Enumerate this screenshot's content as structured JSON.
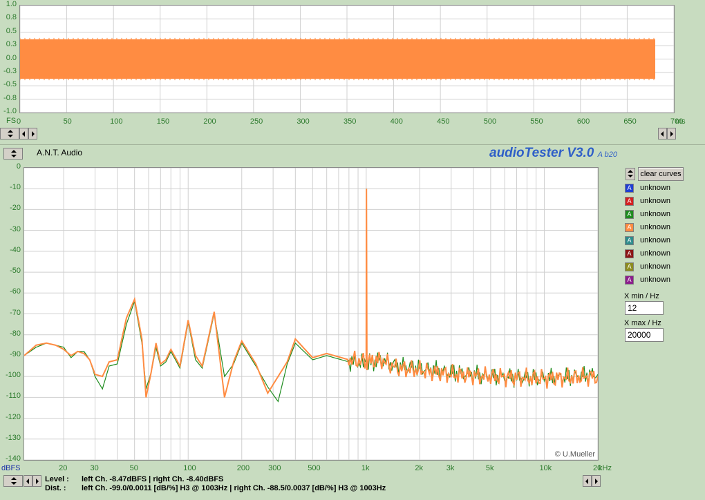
{
  "header": {
    "brand": "A.N.T. Audio",
    "app_title": "audioTester V3.0",
    "app_build": "A b20",
    "copyright": "© U.Mueller"
  },
  "time_plot": {
    "fs_label": "FS",
    "unit_label": "ms",
    "y_ticks": [
      "1.0",
      "0.8",
      "0.5",
      "0.3",
      "0.0",
      "-0.3",
      "-0.5",
      "-0.8",
      "-1.0"
    ],
    "x_ticks": [
      "0",
      "50",
      "100",
      "150",
      "200",
      "250",
      "300",
      "350",
      "400",
      "450",
      "500",
      "550",
      "600",
      "650",
      "700"
    ]
  },
  "spectrum_plot": {
    "unit_y": "dBFS",
    "unit_x": "kHz",
    "y_ticks": [
      "0",
      "-10",
      "-20",
      "-30",
      "-40",
      "-50",
      "-60",
      "-70",
      "-80",
      "-90",
      "-100",
      "-110",
      "-120",
      "-130",
      "-140"
    ],
    "x_ticks": [
      "20",
      "30",
      "50",
      "100",
      "200",
      "300",
      "500",
      "1k",
      "2k",
      "3k",
      "5k",
      "10k",
      "20"
    ]
  },
  "curves_panel": {
    "clear_button": "clear curves",
    "curves": [
      {
        "label": "unknown",
        "color": "#1f3fd4"
      },
      {
        "label": "unknown",
        "color": "#d42020"
      },
      {
        "label": "unknown",
        "color": "#1e8c1e"
      },
      {
        "label": "unknown",
        "color": "#ff8c42"
      },
      {
        "label": "unknown",
        "color": "#2e8c8c"
      },
      {
        "label": "unknown",
        "color": "#8c1414"
      },
      {
        "label": "unknown",
        "color": "#8c8c1e"
      },
      {
        "label": "unknown",
        "color": "#8c1e8c"
      }
    ],
    "x_min_label": "X min / Hz",
    "x_min_value": "12",
    "x_max_label": "X max / Hz",
    "x_max_value": "20000"
  },
  "status": {
    "level_label": "Level :",
    "level_value": "left Ch. -8.47dBFS  |  right Ch. -8.40dBFS",
    "dist_label": "Dist. :",
    "dist_value": "left Ch. -99.0/0.0011 [dB/%] H3 @ 1003Hz  |  right Ch. -88.5/0.0037 [dB/%] H3 @ 1003Hz"
  },
  "chart_data": [
    {
      "type": "line",
      "xlabel": "ms",
      "ylabel": "FS",
      "xlim": [
        0,
        700
      ],
      "ylim": [
        -1.0,
        1.0
      ],
      "series": [
        {
          "color": "#ff8c42",
          "x": [
            0,
            680
          ],
          "upper": [
            0.37,
            0.37
          ],
          "lower": [
            -0.37,
            -0.37
          ]
        }
      ]
    },
    {
      "type": "line",
      "xlabel": "kHz",
      "ylabel": "dBFS",
      "xscale": "log",
      "xlim": [
        12,
        20000
      ],
      "ylim": [
        -140,
        0
      ],
      "grid": true,
      "series": [
        {
          "color": "#1e8c1e",
          "x": [
            12,
            14,
            16,
            18,
            20,
            22,
            24,
            26,
            28,
            30,
            33,
            36,
            40,
            45,
            50,
            55,
            58,
            62,
            66,
            70,
            75,
            80,
            90,
            100,
            110,
            120,
            140,
            160,
            180,
            200,
            240,
            280,
            320,
            360,
            400,
            500,
            600,
            800,
            1000,
            1003,
            1010,
            1200,
            1500,
            2000,
            3000,
            5000,
            10000,
            20000
          ],
          "y": [
            -90,
            -86,
            -84,
            -85,
            -86,
            -91,
            -88,
            -88,
            -92,
            -100,
            -106,
            -95,
            -94,
            -75,
            -64,
            -84,
            -106,
            -98,
            -86,
            -95,
            -93,
            -88,
            -96,
            -74,
            -92,
            -96,
            -70,
            -100,
            -94,
            -84,
            -95,
            -105,
            -112,
            -94,
            -84,
            -92,
            -90,
            -93,
            -94,
            -10,
            -94,
            -92,
            -95,
            -96,
            -98,
            -100,
            -101,
            -99
          ]
        },
        {
          "color": "#ff8c42",
          "x": [
            12,
            14,
            16,
            18,
            20,
            22,
            24,
            26,
            28,
            30,
            33,
            36,
            40,
            45,
            50,
            55,
            58,
            62,
            66,
            70,
            75,
            80,
            90,
            100,
            110,
            120,
            140,
            160,
            180,
            200,
            240,
            280,
            320,
            360,
            400,
            500,
            600,
            800,
            1000,
            1003,
            1010,
            1200,
            1500,
            2000,
            3000,
            5000,
            10000,
            20000
          ],
          "y": [
            -90,
            -85,
            -84,
            -85,
            -87,
            -90,
            -88,
            -89,
            -92,
            -99,
            -100,
            -93,
            -92,
            -72,
            -63,
            -82,
            -110,
            -98,
            -84,
            -94,
            -92,
            -87,
            -95,
            -73,
            -90,
            -95,
            -69,
            -110,
            -93,
            -83,
            -94,
            -108,
            -100,
            -93,
            -82,
            -91,
            -89,
            -92,
            -93,
            -10,
            -93,
            -92,
            -96,
            -97,
            -99,
            -100,
            -101,
            -100
          ]
        }
      ]
    }
  ]
}
